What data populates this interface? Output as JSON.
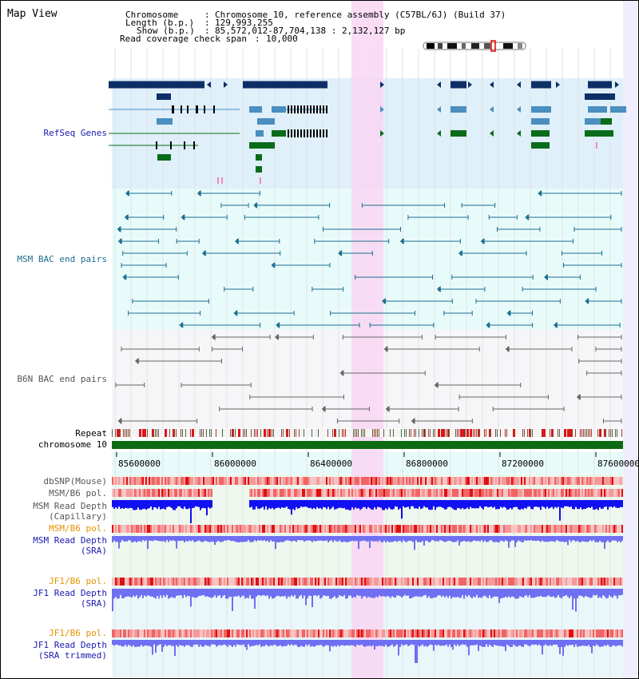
{
  "header": {
    "title": "Map View",
    "chromosome_label": "Chromosome",
    "chromosome_value": "Chromosome 10, reference assembly (C57BL/6J) (Build 37)",
    "length_label": "Length (b.p.)",
    "length_value": "129,993,255",
    "show_label": "Show (b.p.)",
    "show_value": "85,572,012-87,704,138 : 2,132,127 bp",
    "coverage_label": "Read coverage check span",
    "coverage_value": "10,000"
  },
  "tracks": {
    "refseq": "RefSeq Genes",
    "msm_bac": "MSM BAC end pairs",
    "b6n_bac": "B6N BAC end pairs",
    "repeat": "Repeat",
    "chromosome": "chromosome 10",
    "dbsnp": "dbSNP(Mouse)",
    "msm_b6_pol_1": "MSM/B6 pol.",
    "msm_depth_cap_1": "MSM Read Depth",
    "msm_depth_cap_2": "(Capillary)",
    "msm_b6_pol_2": "MSM/B6 pol.",
    "msm_depth_sra_1": "MSM Read Depth",
    "msm_depth_sra_2": "(SRA)",
    "jf1_b6_pol_1": "JF1/B6 pol.",
    "jf1_depth_sra_1": "JF1 Read Depth",
    "jf1_depth_sra_2": "(SRA)",
    "jf1_b6_pol_2": "JF1/B6 pol.",
    "jf1_depth_trim_1": "JF1 Read Depth",
    "jf1_depth_trim_2": "(SRA trimmed)"
  },
  "axis": {
    "ticks": [
      "85600000",
      "86000000",
      "86400000",
      "86800000",
      "87200000",
      "87600000"
    ]
  },
  "colors": {
    "refseq_bg": "#dff0fa",
    "msm_bg": "#e8fbfb",
    "b6n_bg": "#f6f6f8",
    "highlight": "#f9d6f3",
    "dark_gene": "#0d2f66",
    "light_gene": "#4a8fbf",
    "green_gene": "#0a6b1a",
    "msm_bac": "#1c6f8f",
    "b6n_bac": "#666666",
    "repeat_red": "#d81818",
    "chromosome_green": "#0b6b12",
    "depth_dark": "#1010f0",
    "depth_light": "#6f6ff2",
    "label_blue": "#1a1ab0",
    "label_orange": "#e19400"
  }
}
